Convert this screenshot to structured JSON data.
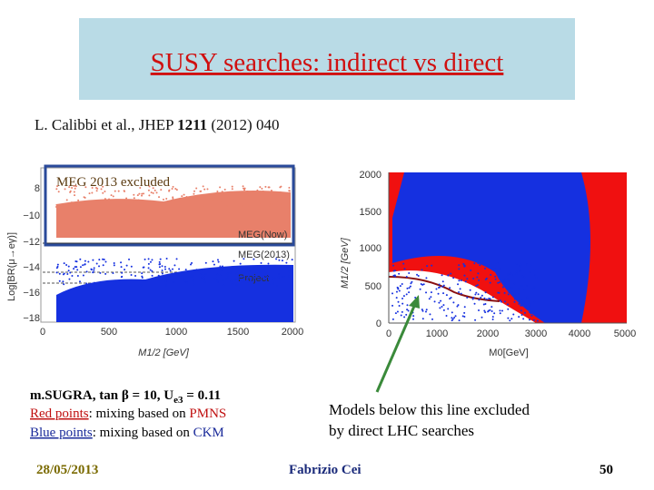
{
  "title": "SUSY searches: indirect vs direct",
  "reference": {
    "authors": "L. Calibbi et al., JHEP ",
    "volume": "1211",
    "rest": " (2012) 040"
  },
  "left_plot": {
    "banner": "MEG 2013 excluded",
    "y_label": "Log[BR(μ→eγ)]",
    "y_ticks": [
      "8",
      "−10",
      "−12",
      "−14",
      "−16",
      "−18"
    ],
    "x_label": "M1/2 [GeV]",
    "x_ticks": [
      "0",
      "500",
      "1000",
      "1500",
      "2000"
    ],
    "legend": [
      "MEG(Now)",
      "MEG(2013)",
      "Project"
    ]
  },
  "right_plot": {
    "y_label": "M1/2 [GeV]",
    "y_ticks": [
      "2000",
      "1500",
      "1000",
      "500",
      "0"
    ],
    "x_label": "M0[GeV]",
    "x_ticks": [
      "0",
      "1000",
      "2000",
      "3000",
      "4000",
      "5000"
    ]
  },
  "notes": {
    "line1": [
      "m.SUGRA, tan β = 10, U",
      "e3",
      " = 0.11"
    ],
    "line2": [
      "Red points",
      ": mixing based on ",
      "PMNS"
    ],
    "line3": [
      "Blue points",
      ": mixing based on ",
      "CKM"
    ]
  },
  "annotation": [
    "Models below this line excluded",
    "by direct LHC searches"
  ],
  "footer": {
    "date": "28/05/2013",
    "author": "Fabrizio Cei",
    "page": "50"
  }
}
